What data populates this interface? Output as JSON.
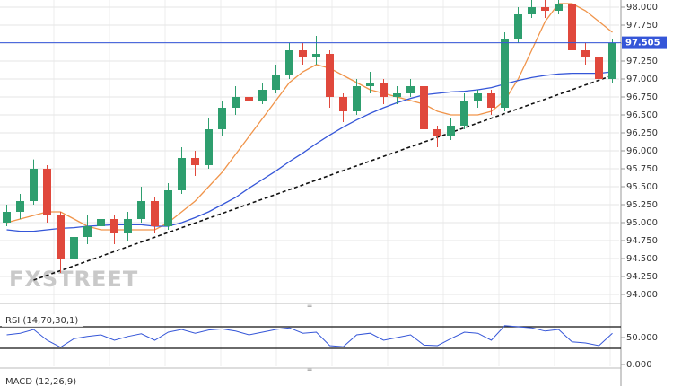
{
  "chart_data": {
    "type": "candlestick",
    "watermark": "FXSTREET",
    "up_color": "#2e9e6e",
    "down_color": "#e0483c",
    "open": [
      95.0,
      95.15,
      95.3,
      95.75,
      95.1,
      94.5,
      94.8,
      94.95,
      95.05,
      94.85,
      95.05,
      95.3,
      94.95,
      95.45,
      95.9,
      95.8,
      96.3,
      96.6,
      96.75,
      96.7,
      96.85,
      97.05,
      97.4,
      97.3,
      97.35,
      96.75,
      96.55,
      96.9,
      96.95,
      96.75,
      96.8,
      96.9,
      96.3,
      96.2,
      96.35,
      96.7,
      96.8,
      96.6,
      97.55,
      97.9,
      98.0,
      97.95,
      98.05,
      97.4,
      97.3,
      97.0
    ],
    "high": [
      95.25,
      95.4,
      95.88,
      95.8,
      95.15,
      94.9,
      95.1,
      95.2,
      95.1,
      95.15,
      95.5,
      95.35,
      95.55,
      96.05,
      96.0,
      96.45,
      96.7,
      96.9,
      96.85,
      96.95,
      97.2,
      97.5,
      97.5,
      97.6,
      97.4,
      96.8,
      97.0,
      97.1,
      97.0,
      96.9,
      97.0,
      96.95,
      96.35,
      96.45,
      96.8,
      96.85,
      96.85,
      97.65,
      98.0,
      98.1,
      98.1,
      98.1,
      98.1,
      97.5,
      97.35,
      97.55
    ],
    "low": [
      94.95,
      95.05,
      95.25,
      95.0,
      94.3,
      94.4,
      94.7,
      94.85,
      94.7,
      94.75,
      95.0,
      94.85,
      94.9,
      95.4,
      95.65,
      95.75,
      96.2,
      96.5,
      96.6,
      96.65,
      96.8,
      97.0,
      97.2,
      97.2,
      96.6,
      96.4,
      96.5,
      96.8,
      96.65,
      96.65,
      96.75,
      96.2,
      96.05,
      96.15,
      96.3,
      96.6,
      96.5,
      96.55,
      97.5,
      97.85,
      97.85,
      97.9,
      97.3,
      97.2,
      96.95,
      96.95
    ],
    "close": [
      95.15,
      95.3,
      95.75,
      95.1,
      94.5,
      94.8,
      94.95,
      95.05,
      94.85,
      95.05,
      95.3,
      94.95,
      95.45,
      95.9,
      95.8,
      96.3,
      96.6,
      96.75,
      96.7,
      96.85,
      97.05,
      97.4,
      97.3,
      97.35,
      96.75,
      96.55,
      96.9,
      96.95,
      96.75,
      96.8,
      96.9,
      96.3,
      96.2,
      96.35,
      96.7,
      96.8,
      96.6,
      97.55,
      97.9,
      98.0,
      97.95,
      98.05,
      97.4,
      97.3,
      97.0,
      97.5
    ],
    "series": [
      {
        "color": "#f0944a",
        "values": [
          95.0,
          95.05,
          95.1,
          95.15,
          95.15,
          95.05,
          94.95,
          94.9,
          94.9,
          94.9,
          94.9,
          94.9,
          95.0,
          95.15,
          95.3,
          95.5,
          95.7,
          95.95,
          96.2,
          96.45,
          96.7,
          96.95,
          97.1,
          97.2,
          97.15,
          97.05,
          96.95,
          96.85,
          96.8,
          96.75,
          96.7,
          96.65,
          96.55,
          96.5,
          96.5,
          96.5,
          96.55,
          96.7,
          97.0,
          97.4,
          97.8,
          98.05,
          98.05,
          97.95,
          97.8,
          97.65
        ]
      },
      {
        "color": "#3556d8",
        "values": [
          94.9,
          94.88,
          94.88,
          94.9,
          94.92,
          94.93,
          94.95,
          94.96,
          94.97,
          94.97,
          94.97,
          94.95,
          94.95,
          95.0,
          95.07,
          95.15,
          95.25,
          95.35,
          95.48,
          95.6,
          95.72,
          95.85,
          95.97,
          96.1,
          96.22,
          96.33,
          96.43,
          96.52,
          96.6,
          96.67,
          96.73,
          96.78,
          96.8,
          96.82,
          96.83,
          96.85,
          96.88,
          96.93,
          96.98,
          97.02,
          97.05,
          97.07,
          97.08,
          97.08,
          97.08,
          97.1
        ]
      }
    ],
    "trendline": [
      94.2,
      97.05
    ],
    "current_price": {
      "value": 97.505,
      "label": "97.505",
      "color": "#3556d8"
    },
    "ylim": [
      93.9,
      98.1
    ],
    "yticks": [
      {
        "value": 94,
        "label": "94.000"
      },
      {
        "value": 94.25,
        "label": "94.250"
      },
      {
        "value": 94.5,
        "label": "94.500"
      },
      {
        "value": 94.75,
        "label": "94.750"
      },
      {
        "value": 95,
        "label": "95.000"
      },
      {
        "value": 95.25,
        "label": "95.250"
      },
      {
        "value": 95.5,
        "label": "95.500"
      },
      {
        "value": 95.75,
        "label": "95.750"
      },
      {
        "value": 96,
        "label": "96.000"
      },
      {
        "value": 96.25,
        "label": "96.250"
      },
      {
        "value": 96.5,
        "label": "96.500"
      },
      {
        "value": 96.75,
        "label": "96.750"
      },
      {
        "value": 97,
        "label": "97.000"
      },
      {
        "value": 97.25,
        "label": "97.250"
      },
      {
        "value": 97.5,
        "label": "97.500"
      },
      {
        "value": 97.75,
        "label": "97.750"
      },
      {
        "value": 98,
        "label": "98.000"
      }
    ],
    "grid": true,
    "rsi": {
      "label": "RSI (14,70,30,1)",
      "color": "#3556d8",
      "values": [
        55,
        58,
        65,
        45,
        32,
        48,
        52,
        55,
        45,
        52,
        57,
        45,
        60,
        65,
        58,
        64,
        66,
        62,
        55,
        60,
        65,
        68,
        58,
        60,
        35,
        33,
        55,
        58,
        45,
        50,
        55,
        36,
        35,
        48,
        60,
        58,
        45,
        72,
        70,
        68,
        62,
        65,
        42,
        40,
        35,
        58
      ],
      "levels": [
        70,
        30
      ],
      "ylim": [
        0,
        100
      ],
      "yticks": [
        {
          "value": 50,
          "label": "50.000"
        },
        {
          "value": 0,
          "label": "0.000"
        }
      ]
    },
    "macd": {
      "label": "MACD (12,26,9)"
    }
  }
}
